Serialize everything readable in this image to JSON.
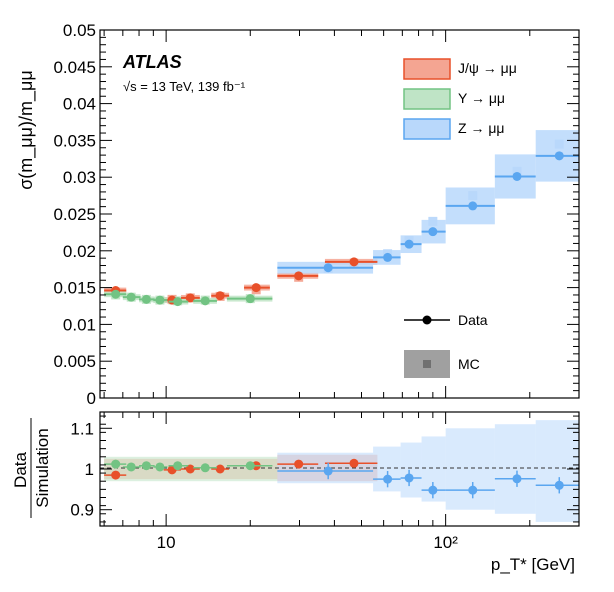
{
  "chart_data": [
    {
      "type": "scatter",
      "xscale": "log",
      "xlim": [
        5.8,
        300
      ],
      "ylim": [
        0,
        0.05
      ],
      "yticks": [
        0,
        0.005,
        0.01,
        0.015,
        0.02,
        0.025,
        0.03,
        0.035,
        0.04,
        0.045,
        0.05
      ],
      "ytick_labels": [
        "0",
        "0.005",
        "0.01",
        "0.015",
        "0.02",
        "0.025",
        "0.03",
        "0.035",
        "0.04",
        "0.045",
        "0.05"
      ],
      "ylabel": "σ(m_μμ)/m_μμ",
      "experiment": "ATLAS",
      "energy_label": "√s = 13 TeV, 139 fb⁻¹",
      "legend_series": [
        {
          "key": "jpsi",
          "label": "J/ψ → μμ",
          "color": "#e8502a",
          "fill": "#f4a592"
        },
        {
          "key": "upsilon",
          "label": "Υ → μμ",
          "color": "#72c383",
          "fill": "#bfe4c6"
        },
        {
          "key": "z",
          "label": "Z → μμ",
          "color": "#5aa6f0",
          "fill": "#b9d8fb"
        }
      ],
      "legend_markers": {
        "data": "Data",
        "mc": "MC"
      },
      "series": [
        {
          "name": "J/ψ → μμ",
          "key": "jpsi",
          "points": [
            {
              "x": 6.6,
              "xlo": 6.0,
              "xhi": 7.2,
              "y": 0.0146,
              "mc": 0.0144
            },
            {
              "x": 10.5,
              "xlo": 9.8,
              "xhi": 11.3,
              "y": 0.0133,
              "mc": 0.0134
            },
            {
              "x": 12.2,
              "xlo": 11.3,
              "xhi": 13.2,
              "y": 0.0136,
              "mc": 0.0136
            },
            {
              "x": 15.6,
              "xlo": 14.5,
              "xhi": 16.8,
              "y": 0.0139,
              "mc": 0.0138
            },
            {
              "x": 21.0,
              "xlo": 19.0,
              "xhi": 23.5,
              "y": 0.015,
              "mc": 0.0147
            },
            {
              "x": 29.8,
              "xlo": 25.0,
              "xhi": 35.0,
              "y": 0.0166,
              "mc": 0.0164
            },
            {
              "x": 47.0,
              "xlo": 37.0,
              "xhi": 57.0,
              "y": 0.0185,
              "mc": 0.0183
            }
          ]
        },
        {
          "name": "Υ → μμ",
          "key": "upsilon",
          "points": [
            {
              "x": 6.6,
              "xlo": 6.0,
              "xhi": 7.2,
              "y": 0.0141,
              "mc": 0.014
            },
            {
              "x": 7.5,
              "xlo": 7.0,
              "xhi": 8.1,
              "y": 0.0137,
              "mc": 0.0137
            },
            {
              "x": 8.5,
              "xlo": 8.0,
              "xhi": 9.1,
              "y": 0.0134,
              "mc": 0.0134
            },
            {
              "x": 9.5,
              "xlo": 9.0,
              "xhi": 10.1,
              "y": 0.0133,
              "mc": 0.0133
            },
            {
              "x": 11.0,
              "xlo": 10.2,
              "xhi": 12.0,
              "y": 0.0131,
              "mc": 0.0132
            },
            {
              "x": 13.8,
              "xlo": 12.5,
              "xhi": 15.2,
              "y": 0.0132,
              "mc": 0.0133
            },
            {
              "x": 20.0,
              "xlo": 16.5,
              "xhi": 24.0,
              "y": 0.0135,
              "mc": 0.0135
            }
          ]
        },
        {
          "name": "Z → μμ",
          "key": "z",
          "points": [
            {
              "x": 38.0,
              "xlo": 25.0,
              "xhi": 55.0,
              "y": 0.0177,
              "mc": 0.0176,
              "band": 0.0008
            },
            {
              "x": 62.0,
              "xlo": 55.0,
              "xhi": 69.0,
              "y": 0.0191,
              "mc": 0.0196,
              "band": 0.001
            },
            {
              "x": 74.0,
              "xlo": 69.0,
              "xhi": 82.0,
              "y": 0.0209,
              "mc": 0.0214,
              "band": 0.0012
            },
            {
              "x": 90.0,
              "xlo": 82.0,
              "xhi": 100.0,
              "y": 0.0226,
              "mc": 0.024,
              "band": 0.0016
            },
            {
              "x": 125.0,
              "xlo": 100.0,
              "xhi": 150.0,
              "y": 0.0261,
              "mc": 0.0275,
              "band": 0.0025
            },
            {
              "x": 180.0,
              "xlo": 150.0,
              "xhi": 210.0,
              "y": 0.0301,
              "mc": 0.0308,
              "band": 0.003
            },
            {
              "x": 255.0,
              "xlo": 210.0,
              "xhi": 300.0,
              "y": 0.0329,
              "mc": 0.0345,
              "band": 0.0035
            }
          ]
        }
      ]
    },
    {
      "type": "scatter",
      "xscale": "log",
      "xlim": [
        5.8,
        300
      ],
      "ylim": [
        0.86,
        1.14
      ],
      "yticks": [
        0.9,
        1,
        1.1
      ],
      "ytick_labels": [
        "0.9",
        "1",
        "1.1"
      ],
      "ylabel_top": "Data",
      "ylabel_bottom": "Simulation",
      "xlabel": "p_T* [GeV]",
      "xticks": [
        10,
        100
      ],
      "xtick_labels": [
        "10",
        "10²"
      ],
      "series": [
        {
          "key": "jpsi",
          "points": [
            {
              "x": 6.6,
              "y": 0.985
            },
            {
              "x": 10.5,
              "y": 0.998
            },
            {
              "x": 12.2,
              "y": 1.0
            },
            {
              "x": 15.6,
              "y": 1.0
            },
            {
              "x": 21.0,
              "y": 1.008
            },
            {
              "x": 29.8,
              "y": 1.012
            },
            {
              "x": 47.0,
              "y": 1.014
            }
          ]
        },
        {
          "key": "upsilon",
          "points": [
            {
              "x": 6.6,
              "y": 1.012
            },
            {
              "x": 7.5,
              "y": 1.005
            },
            {
              "x": 8.5,
              "y": 1.008
            },
            {
              "x": 9.5,
              "y": 1.005
            },
            {
              "x": 11.0,
              "y": 1.008
            },
            {
              "x": 13.8,
              "y": 1.003
            },
            {
              "x": 20.0,
              "y": 1.008
            }
          ]
        },
        {
          "key": "z",
          "points": [
            {
              "x": 38.0,
              "y": 0.995
            },
            {
              "x": 62.0,
              "y": 0.975
            },
            {
              "x": 74.0,
              "y": 0.978
            },
            {
              "x": 90.0,
              "y": 0.948
            },
            {
              "x": 125.0,
              "y": 0.948
            },
            {
              "x": 180.0,
              "y": 0.976
            },
            {
              "x": 255.0,
              "y": 0.96
            }
          ]
        }
      ],
      "bands": [
        {
          "key": "jpsi",
          "xlo": 6.0,
          "xhi": 25.0,
          "lo": 0.975,
          "hi": 1.025
        },
        {
          "key": "upsilon",
          "xlo": 6.0,
          "xhi": 25.0,
          "lo": 0.97,
          "hi": 1.03
        },
        {
          "key": "jpsi",
          "xlo": 25.0,
          "xhi": 57.0,
          "lo": 0.97,
          "hi": 1.035
        },
        {
          "key": "z",
          "xlo": 25.0,
          "xhi": 55.0,
          "lo": 0.965,
          "hi": 1.04
        },
        {
          "key": "z",
          "xlo": 55.0,
          "xhi": 69.0,
          "lo": 0.945,
          "hi": 1.055
        },
        {
          "key": "z",
          "xlo": 69.0,
          "xhi": 82.0,
          "lo": 0.93,
          "hi": 1.065
        },
        {
          "key": "z",
          "xlo": 82.0,
          "xhi": 100.0,
          "lo": 0.92,
          "hi": 1.08
        },
        {
          "key": "z",
          "xlo": 100.0,
          "xhi": 150.0,
          "lo": 0.9,
          "hi": 1.1
        },
        {
          "key": "z",
          "xlo": 150.0,
          "xhi": 210.0,
          "lo": 0.89,
          "hi": 1.11
        },
        {
          "key": "z",
          "xlo": 210.0,
          "xhi": 300.0,
          "lo": 0.87,
          "hi": 1.12
        }
      ]
    }
  ]
}
